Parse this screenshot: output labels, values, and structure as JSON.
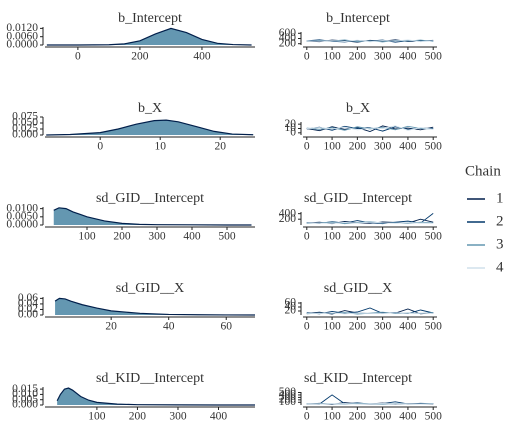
{
  "chart_data": [
    {
      "type": "area",
      "title": "b_Intercept",
      "color": "#6497b1",
      "line_color": "#011f4b",
      "x": [
        -100,
        0,
        100,
        150,
        200,
        250,
        300,
        350,
        400,
        450,
        500,
        560
      ],
      "values": [
        0,
        0,
        0.0002,
        0.0008,
        0.003,
        0.008,
        0.012,
        0.009,
        0.004,
        0.0012,
        0.0003,
        0
      ],
      "xlim": [
        -106,
        571
      ],
      "xticks": [
        0,
        200,
        400
      ],
      "ylim": [
        0,
        0.013
      ],
      "yticks": [
        {
          "value": 0,
          "label": "0.0000"
        },
        {
          "value": 0.006,
          "label": "0.0060"
        },
        {
          "value": 0.012,
          "label": "0.0120"
        }
      ]
    },
    {
      "type": "line",
      "title": "b_Intercept",
      "legend_title": "Chain",
      "legend": "right",
      "x": [
        0,
        50,
        100,
        150,
        200,
        250,
        300,
        350,
        400,
        450,
        500
      ],
      "series": [
        {
          "name": "1",
          "color": "#011f4b",
          "values": [
            300,
            280,
            340,
            310,
            260,
            330,
            295,
            350,
            285,
            310,
            305
          ]
        },
        {
          "name": "2",
          "color": "#03396c",
          "values": [
            310,
            350,
            290,
            270,
            320,
            300,
            340,
            260,
            315,
            295,
            330
          ]
        },
        {
          "name": "3",
          "color": "#6497b1",
          "values": [
            290,
            320,
            305,
            345,
            280,
            310,
            270,
            325,
            300,
            340,
            285
          ]
        },
        {
          "name": "4",
          "color": "#d1e1ec",
          "values": [
            305,
            295,
            315,
            285,
            335,
            275,
            320,
            300,
            345,
            280,
            310
          ]
        }
      ],
      "xlim": [
        -15,
        515
      ],
      "xticks": [
        0,
        100,
        200,
        300,
        400,
        500
      ],
      "ylim": [
        150,
        650
      ],
      "yticks": [
        200,
        400,
        600
      ]
    },
    {
      "type": "area",
      "title": "b_X",
      "color": "#6497b1",
      "line_color": "#011f4b",
      "x": [
        -9,
        -5,
        0,
        3,
        6,
        9,
        11,
        13,
        16,
        19,
        22,
        25.5
      ],
      "values": [
        0,
        0.002,
        0.01,
        0.025,
        0.045,
        0.06,
        0.062,
        0.055,
        0.035,
        0.015,
        0.004,
        0.001
      ],
      "xlim": [
        -9.2,
        25.8
      ],
      "xticks": [
        0,
        10,
        20
      ],
      "ylim": [
        0,
        0.075
      ],
      "yticks": [
        {
          "value": 0,
          "label": "0.000"
        },
        0.025,
        {
          "value": 0.05,
          "label": "0.050"
        },
        0.075
      ]
    },
    {
      "type": "line",
      "title": "b_X",
      "x": [
        0,
        50,
        100,
        150,
        200,
        250,
        300,
        350,
        400,
        450,
        500
      ],
      "series": [
        {
          "name": "1",
          "color": "#011f4b",
          "values": [
            10,
            5,
            14,
            8,
            12,
            3,
            16,
            9,
            11,
            7,
            13
          ]
        },
        {
          "name": "2",
          "color": "#03396c",
          "values": [
            9,
            13,
            6,
            15,
            10,
            12,
            4,
            14,
            8,
            11,
            10
          ]
        },
        {
          "name": "3",
          "color": "#6497b1",
          "values": [
            11,
            8,
            12,
            6,
            14,
            9,
            13,
            7,
            15,
            10,
            9
          ]
        },
        {
          "name": "4",
          "color": "#d1e1ec",
          "values": [
            10,
            12,
            9,
            13,
            7,
            11,
            10,
            16,
            6,
            12,
            8
          ]
        }
      ],
      "xlim": [
        -15,
        515
      ],
      "xticks": [
        0,
        100,
        200,
        300,
        400,
        500
      ],
      "ylim": [
        -5,
        25
      ],
      "yticks": [
        0,
        10,
        20
      ]
    },
    {
      "type": "area",
      "title": "sd_GID__Intercept",
      "color": "#6497b1",
      "line_color": "#011f4b",
      "x": [
        5,
        20,
        40,
        60,
        80,
        100,
        150,
        200,
        250,
        300,
        400,
        500,
        570
      ],
      "values": [
        0.009,
        0.0105,
        0.01,
        0.008,
        0.0065,
        0.005,
        0.0025,
        0.001,
        0.0004,
        0.0002,
        0.0001,
        0,
        0
      ],
      "xlim": [
        -20,
        580
      ],
      "xticks": [
        100,
        200,
        300,
        400,
        500
      ],
      "ylim": [
        0,
        0.011
      ],
      "yticks": [
        {
          "value": 0,
          "label": "0.0000"
        },
        {
          "value": 0.005,
          "label": "0.0050"
        },
        {
          "value": 0.01,
          "label": "0.0100"
        }
      ]
    },
    {
      "type": "line",
      "title": "sd_GID__Intercept",
      "x": [
        0,
        50,
        100,
        150,
        200,
        250,
        300,
        350,
        400,
        450,
        500
      ],
      "series": [
        {
          "name": "1",
          "color": "#011f4b",
          "values": [
            60,
            90,
            40,
            120,
            70,
            50,
            100,
            80,
            60,
            200,
            90
          ]
        },
        {
          "name": "2",
          "color": "#03396c",
          "values": [
            80,
            50,
            110,
            60,
            150,
            70,
            40,
            90,
            130,
            60,
            410
          ]
        },
        {
          "name": "3",
          "color": "#6497b1",
          "values": [
            50,
            70,
            90,
            40,
            80,
            110,
            60,
            70,
            50,
            90,
            70
          ]
        },
        {
          "name": "4",
          "color": "#d1e1ec",
          "values": [
            70,
            60,
            50,
            80,
            60,
            90,
            70,
            50,
            80,
            60,
            50
          ]
        }
      ],
      "xlim": [
        -15,
        515
      ],
      "xticks": [
        0,
        100,
        200,
        300,
        400,
        500
      ],
      "ylim": [
        -10,
        460
      ],
      "yticks": [
        200,
        400
      ]
    },
    {
      "type": "area",
      "title": "sd_GID__X",
      "color": "#6497b1",
      "line_color": "#011f4b",
      "x": [
        0.5,
        2,
        4,
        6,
        10,
        15,
        20,
        30,
        40,
        50,
        60,
        70
      ],
      "values": [
        0.05,
        0.06,
        0.058,
        0.05,
        0.037,
        0.025,
        0.015,
        0.006,
        0.002,
        0.0008,
        0.0002,
        0
      ],
      "xlim": [
        -3,
        70
      ],
      "xticks": [
        20,
        40,
        60
      ],
      "ylim": [
        0,
        0.065
      ],
      "yticks": [
        {
          "value": 0,
          "label": "0.00"
        },
        0.02,
        0.04,
        0.06
      ]
    },
    {
      "type": "line",
      "title": "sd_GID__X",
      "x": [
        0,
        50,
        100,
        150,
        200,
        250,
        300,
        350,
        400,
        450,
        500
      ],
      "series": [
        {
          "name": "1",
          "color": "#011f4b",
          "values": [
            8,
            14,
            5,
            22,
            10,
            7,
            12,
            9,
            30,
            6,
            11
          ]
        },
        {
          "name": "2",
          "color": "#03396c",
          "values": [
            12,
            6,
            18,
            9,
            15,
            35,
            8,
            13,
            7,
            25,
            10
          ]
        },
        {
          "name": "3",
          "color": "#6497b1",
          "values": [
            6,
            10,
            8,
            12,
            5,
            9,
            14,
            7,
            10,
            8,
            12
          ]
        },
        {
          "name": "4",
          "color": "#d1e1ec",
          "values": [
            9,
            7,
            11,
            6,
            10,
            8,
            7,
            11,
            9,
            10,
            7
          ]
        }
      ],
      "xlim": [
        -15,
        515
      ],
      "xticks": [
        0,
        100,
        200,
        300,
        400,
        500
      ],
      "ylim": [
        0,
        65
      ],
      "yticks": [
        20,
        40,
        60
      ]
    },
    {
      "type": "area",
      "title": "sd_KID__Intercept",
      "color": "#6497b1",
      "line_color": "#011f4b",
      "x": [
        2,
        10,
        20,
        30,
        40,
        60,
        80,
        100,
        150,
        200,
        300,
        400,
        490
      ],
      "values": [
        0.004,
        0.01,
        0.015,
        0.016,
        0.014,
        0.008,
        0.0045,
        0.0025,
        0.0008,
        0.0003,
        0.0001,
        0,
        0
      ],
      "xlim": [
        -28,
        490
      ],
      "xticks": [
        100,
        200,
        300,
        400
      ],
      "ylim": [
        0,
        0.017
      ],
      "yticks": [
        {
          "value": 0,
          "label": "0.000"
        },
        {
          "value": 0.005,
          "label": "0.005"
        },
        {
          "value": 0.01,
          "label": "0.010"
        },
        0.015
      ]
    },
    {
      "type": "line",
      "title": "sd_KID__Intercept",
      "x": [
        0,
        50,
        100,
        150,
        200,
        250,
        300,
        350,
        400,
        450,
        500
      ],
      "series": [
        {
          "name": "1",
          "color": "#011f4b",
          "values": [
            30,
            60,
            20,
            90,
            40,
            35,
            70,
            25,
            55,
            40,
            30
          ]
        },
        {
          "name": "2",
          "color": "#03396c",
          "values": [
            45,
            25,
            400,
            40,
            80,
            30,
            50,
            120,
            35,
            60,
            45
          ]
        },
        {
          "name": "3",
          "color": "#6497b1",
          "values": [
            35,
            50,
            40,
            30,
            60,
            45,
            25,
            50,
            40,
            35,
            55
          ]
        },
        {
          "name": "4",
          "color": "#d1e1ec",
          "values": [
            40,
            35,
            45,
            50,
            30,
            40,
            55,
            35,
            45,
            30,
            40
          ]
        }
      ],
      "xlim": [
        -15,
        515
      ],
      "xticks": [
        0,
        100,
        200,
        300,
        400,
        500
      ],
      "ylim": [
        -10,
        520
      ],
      "yticks": [
        100,
        200,
        300,
        400,
        500
      ]
    }
  ]
}
